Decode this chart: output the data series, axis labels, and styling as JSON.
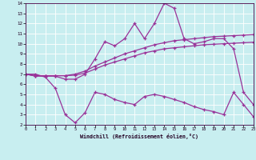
{
  "xlabel": "Windchill (Refroidissement éolien,°C)",
  "xlim": [
    0,
    23
  ],
  "ylim": [
    2,
    14
  ],
  "xticks": [
    0,
    1,
    2,
    3,
    4,
    5,
    6,
    7,
    8,
    9,
    10,
    11,
    12,
    13,
    14,
    15,
    16,
    17,
    18,
    19,
    20,
    21,
    22,
    23
  ],
  "yticks": [
    2,
    3,
    4,
    5,
    6,
    7,
    8,
    9,
    10,
    11,
    12,
    13,
    14
  ],
  "color": "#993399",
  "bg_color": "#c8eef0",
  "grid_color": "#ffffff",
  "line_main_x": [
    0,
    1,
    2,
    3,
    4,
    5,
    6,
    7,
    8,
    9,
    10,
    11,
    12,
    13,
    14,
    15,
    16,
    17,
    18,
    19,
    20,
    21,
    22,
    23
  ],
  "line_main_y": [
    7.0,
    6.8,
    6.8,
    6.8,
    6.5,
    6.5,
    7.0,
    8.5,
    10.2,
    9.8,
    10.5,
    12.0,
    10.5,
    12.0,
    14.0,
    13.5,
    10.5,
    10.0,
    10.2,
    10.5,
    10.5,
    9.5,
    5.2,
    4.0
  ],
  "line_trend1_x": [
    0,
    1,
    2,
    3,
    4,
    5,
    6,
    7,
    8,
    9,
    10,
    11,
    12,
    13,
    14,
    15,
    16,
    17,
    18,
    19,
    20,
    21,
    22,
    23
  ],
  "line_trend1_y": [
    7.0,
    6.85,
    6.85,
    6.85,
    6.85,
    6.9,
    7.1,
    7.5,
    7.9,
    8.2,
    8.5,
    8.8,
    9.1,
    9.3,
    9.5,
    9.6,
    9.7,
    9.8,
    9.9,
    9.95,
    10.0,
    10.05,
    10.1,
    10.15
  ],
  "line_trend2_x": [
    0,
    1,
    2,
    3,
    4,
    5,
    6,
    7,
    8,
    9,
    10,
    11,
    12,
    13,
    14,
    15,
    16,
    17,
    18,
    19,
    20,
    21,
    22,
    23
  ],
  "line_trend2_y": [
    7.0,
    6.85,
    6.85,
    6.85,
    6.85,
    7.0,
    7.3,
    7.8,
    8.2,
    8.6,
    9.0,
    9.3,
    9.6,
    9.9,
    10.1,
    10.3,
    10.4,
    10.5,
    10.6,
    10.7,
    10.75,
    10.8,
    10.85,
    10.9
  ],
  "line_low_x": [
    0,
    1,
    2,
    3,
    4,
    5,
    6,
    7,
    8,
    9,
    10,
    11,
    12,
    13,
    14,
    15,
    16,
    17,
    18,
    19,
    20,
    21,
    22,
    23
  ],
  "line_low_y": [
    7.0,
    7.0,
    6.7,
    5.6,
    3.0,
    2.2,
    3.2,
    5.2,
    5.0,
    4.5,
    4.2,
    4.0,
    4.8,
    5.0,
    4.8,
    4.5,
    4.2,
    3.8,
    3.5,
    3.3,
    3.0,
    5.2,
    4.0,
    2.8
  ]
}
